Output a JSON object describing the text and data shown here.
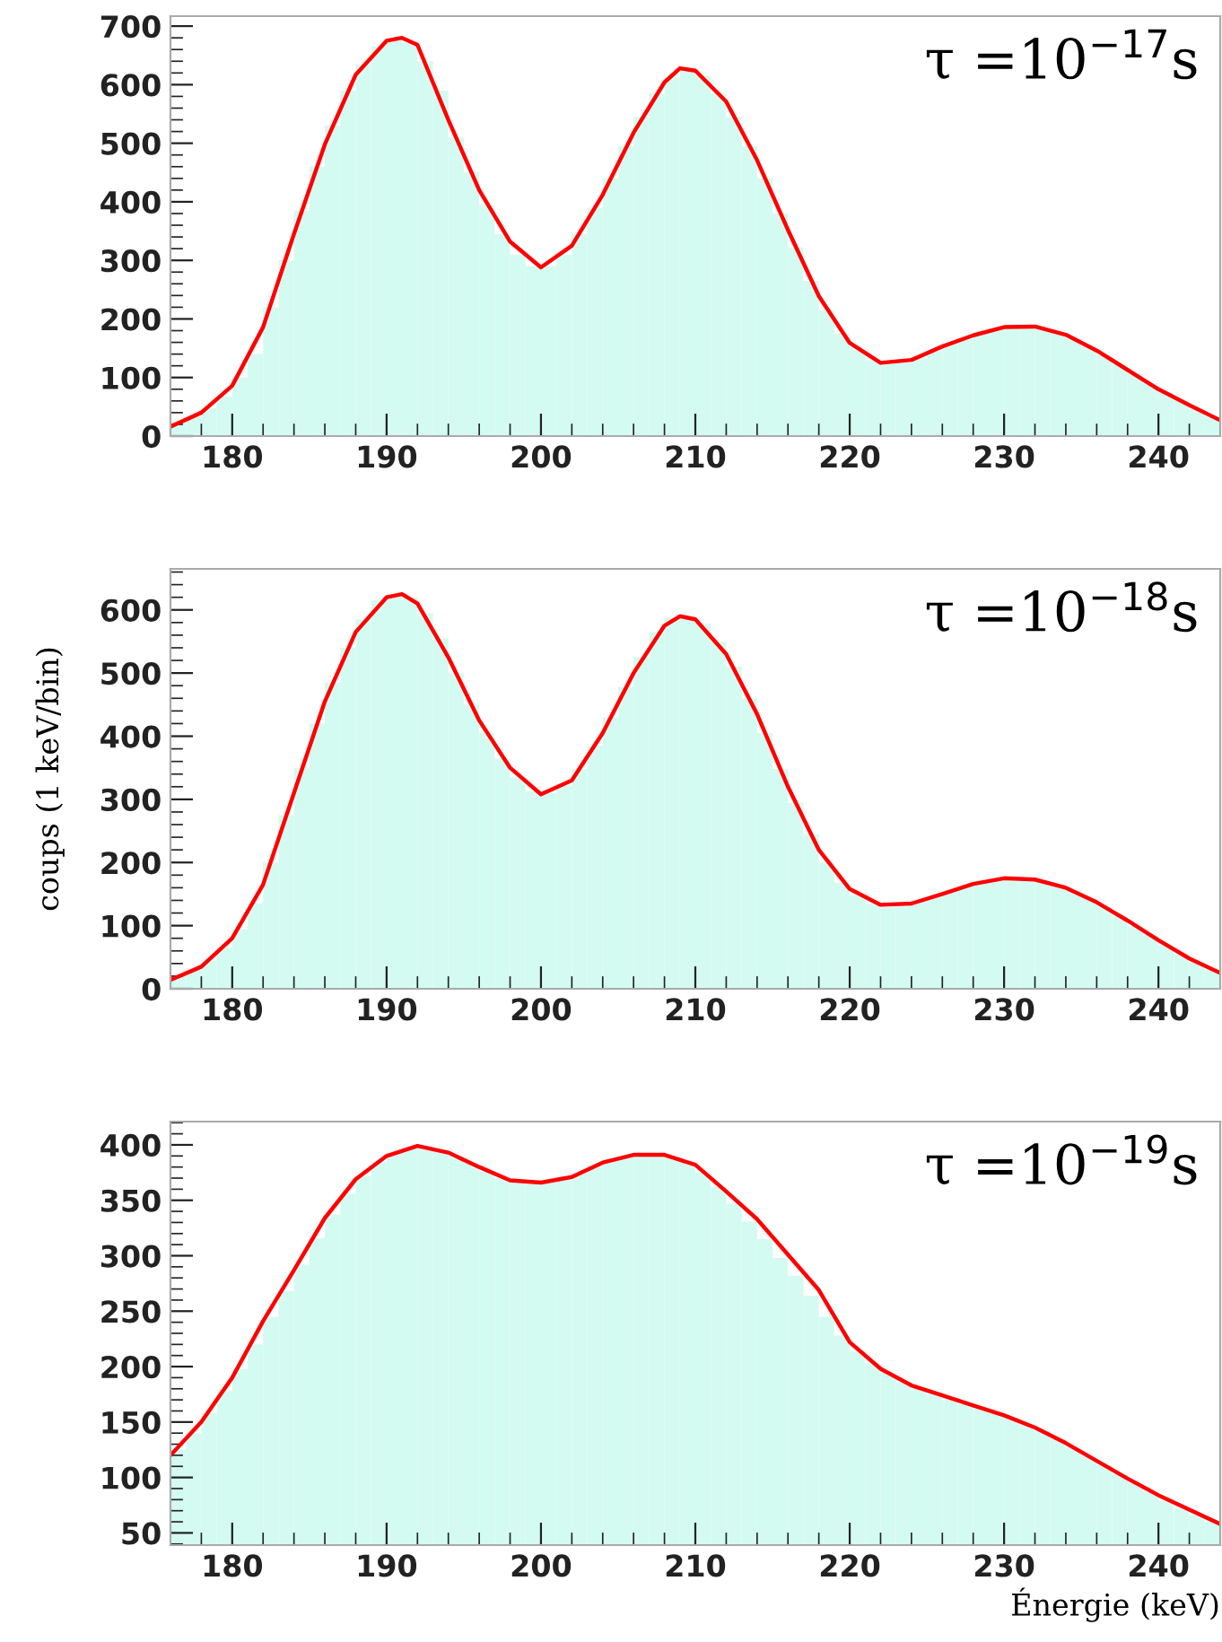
{
  "chart_data": [
    {
      "type": "histogram",
      "annotations": [
        "τ =10$^{−17}$s"
      ],
      "xlim": [
        176,
        244
      ],
      "xticks": [
        180,
        190,
        200,
        210,
        220,
        230,
        240
      ],
      "ylim": [
        0,
        717
      ],
      "yticks": [
        0,
        100,
        200,
        300,
        400,
        500,
        600,
        700
      ],
      "grid": false,
      "bins": [
        176,
        177,
        178,
        179,
        180,
        181,
        182,
        183,
        184,
        185,
        186,
        187,
        188,
        189,
        190,
        191,
        192,
        193,
        194,
        195,
        196,
        197,
        198,
        199,
        200,
        201,
        202,
        203,
        204,
        205,
        206,
        207,
        208,
        209,
        210,
        211,
        212,
        213,
        214,
        215,
        216,
        217,
        218,
        219,
        220,
        221,
        222,
        223,
        224,
        225,
        226,
        227,
        228,
        229,
        230,
        231,
        232,
        233,
        234,
        235,
        236,
        237,
        238,
        239,
        240,
        241,
        242,
        243,
        244
      ],
      "series": [
        {
          "color": "#d4fbf1",
          "values": [
            22,
            33,
            48,
            68,
            100,
            140,
            220,
            300,
            385,
            460,
            530,
            590,
            635,
            665,
            678,
            672,
            640,
            590,
            510,
            450,
            395,
            345,
            310,
            290,
            290,
            310,
            345,
            390,
            440,
            495,
            545,
            585,
            612,
            625,
            615,
            585,
            545,
            495,
            440,
            380,
            322,
            265,
            215,
            175,
            148,
            130,
            123,
            125,
            133,
            145,
            157,
            168,
            177,
            184,
            187,
            188,
            184,
            176,
            166,
            153,
            138,
            122,
            106,
            90,
            74,
            60,
            46,
            34
          ]
        },
        {
          "type": "line",
          "color": "#ff0000",
          "x": [
            176,
            178,
            180,
            182,
            184,
            186,
            188,
            190,
            191,
            192,
            194,
            196,
            198,
            200,
            202,
            204,
            206,
            208,
            209,
            210,
            212,
            214,
            216,
            218,
            220,
            222,
            224,
            226,
            228,
            230,
            232,
            234,
            236,
            238,
            240,
            242,
            244
          ],
          "values": [
            16,
            40,
            86,
            186,
            345,
            498,
            617,
            675,
            680,
            668,
            540,
            420,
            332,
            288,
            325,
            412,
            518,
            604,
            628,
            624,
            571,
            471,
            352,
            239,
            159,
            125,
            130,
            153,
            172,
            186,
            187,
            173,
            146,
            113,
            80,
            53,
            27
          ]
        }
      ]
    },
    {
      "type": "histogram",
      "annotations": [
        "τ =10$^{−18}$s"
      ],
      "ylabel": "coups (1 keV/bin)",
      "xlim": [
        176,
        244
      ],
      "xticks": [
        180,
        190,
        200,
        210,
        220,
        230,
        240
      ],
      "ylim": [
        0,
        665
      ],
      "yticks": [
        0,
        100,
        200,
        300,
        400,
        500,
        600
      ],
      "grid": false,
      "bins": [
        176,
        177,
        178,
        179,
        180,
        181,
        182,
        183,
        184,
        185,
        186,
        187,
        188,
        189,
        190,
        191,
        192,
        193,
        194,
        195,
        196,
        197,
        198,
        199,
        200,
        201,
        202,
        203,
        204,
        205,
        206,
        207,
        208,
        209,
        210,
        211,
        212,
        213,
        214,
        215,
        216,
        217,
        218,
        219,
        220,
        221,
        222,
        223,
        224,
        225,
        226,
        227,
        228,
        229,
        230,
        231,
        232,
        233,
        234,
        235,
        236,
        237,
        238,
        239,
        240,
        241,
        242,
        243,
        244
      ],
      "series": [
        {
          "color": "#d4fbf1",
          "values": [
            20,
            30,
            45,
            65,
            95,
            135,
            200,
            275,
            350,
            420,
            485,
            540,
            585,
            615,
            625,
            620,
            595,
            555,
            500,
            450,
            405,
            365,
            335,
            313,
            310,
            322,
            348,
            385,
            430,
            478,
            525,
            565,
            588,
            590,
            578,
            550,
            510,
            460,
            405,
            348,
            295,
            245,
            200,
            168,
            148,
            135,
            130,
            132,
            138,
            146,
            155,
            163,
            170,
            174,
            176,
            175,
            171,
            165,
            156,
            144,
            130,
            115,
            99,
            84,
            69,
            55,
            43,
            32
          ]
        },
        {
          "type": "line",
          "color": "#ff0000",
          "x": [
            176,
            178,
            180,
            182,
            184,
            186,
            188,
            190,
            191,
            192,
            194,
            196,
            198,
            200,
            202,
            204,
            206,
            208,
            209,
            210,
            212,
            214,
            216,
            218,
            220,
            222,
            224,
            226,
            228,
            230,
            232,
            234,
            236,
            238,
            240,
            242,
            244
          ],
          "values": [
            14,
            35,
            80,
            165,
            310,
            455,
            565,
            620,
            625,
            610,
            525,
            425,
            350,
            308,
            330,
            405,
            500,
            575,
            590,
            585,
            530,
            435,
            320,
            220,
            158,
            133,
            135,
            150,
            166,
            175,
            173,
            160,
            137,
            108,
            77,
            48,
            25
          ]
        }
      ]
    },
    {
      "type": "histogram",
      "annotations": [
        "τ =10$^{−19}$s"
      ],
      "xlabel": "Énergie (keV)",
      "xlim": [
        176,
        244
      ],
      "xticks": [
        180,
        190,
        200,
        210,
        220,
        230,
        240
      ],
      "ylim": [
        39,
        421
      ],
      "yticks": [
        50,
        100,
        150,
        200,
        250,
        300,
        350,
        400
      ],
      "grid": false,
      "bins": [
        176,
        177,
        178,
        179,
        180,
        181,
        182,
        183,
        184,
        185,
        186,
        187,
        188,
        189,
        190,
        191,
        192,
        193,
        194,
        195,
        196,
        197,
        198,
        199,
        200,
        201,
        202,
        203,
        204,
        205,
        206,
        207,
        208,
        209,
        210,
        211,
        212,
        213,
        214,
        215,
        216,
        217,
        218,
        219,
        220,
        221,
        222,
        223,
        224,
        225,
        226,
        227,
        228,
        229,
        230,
        231,
        232,
        233,
        234,
        235,
        236,
        237,
        238,
        239,
        240,
        241,
        242,
        243,
        244
      ],
      "series": [
        {
          "color": "#d4fbf1",
          "values": [
            125,
            140,
            158,
            178,
            198,
            220,
            245,
            268,
            292,
            316,
            337,
            356,
            372,
            385,
            393,
            398,
            399,
            396,
            390,
            383,
            376,
            370,
            367,
            366,
            366,
            369,
            374,
            380,
            385,
            389,
            391,
            392,
            389,
            384,
            375,
            362,
            347,
            331,
            315,
            298,
            282,
            264,
            245,
            228,
            214,
            203,
            194,
            186,
            180,
            175,
            170,
            166,
            162,
            158,
            154,
            148,
            142,
            135,
            127,
            119,
            111,
            103,
            95,
            87,
            79,
            72,
            66,
            60
          ]
        },
        {
          "type": "line",
          "color": "#ff0000",
          "x": [
            176,
            178,
            180,
            182,
            184,
            186,
            188,
            190,
            192,
            194,
            196,
            198,
            200,
            202,
            204,
            206,
            208,
            210,
            212,
            214,
            216,
            218,
            220,
            222,
            224,
            226,
            228,
            230,
            232,
            234,
            236,
            238,
            240,
            242,
            244
          ],
          "values": [
            120,
            150,
            190,
            241,
            287,
            334,
            369,
            390,
            399,
            393,
            380,
            368,
            366,
            371,
            384,
            391,
            391,
            382,
            358,
            333,
            301,
            269,
            222,
            198,
            183,
            174,
            165,
            156,
            145,
            131,
            115,
            99,
            84,
            71,
            58
          ]
        }
      ]
    }
  ]
}
